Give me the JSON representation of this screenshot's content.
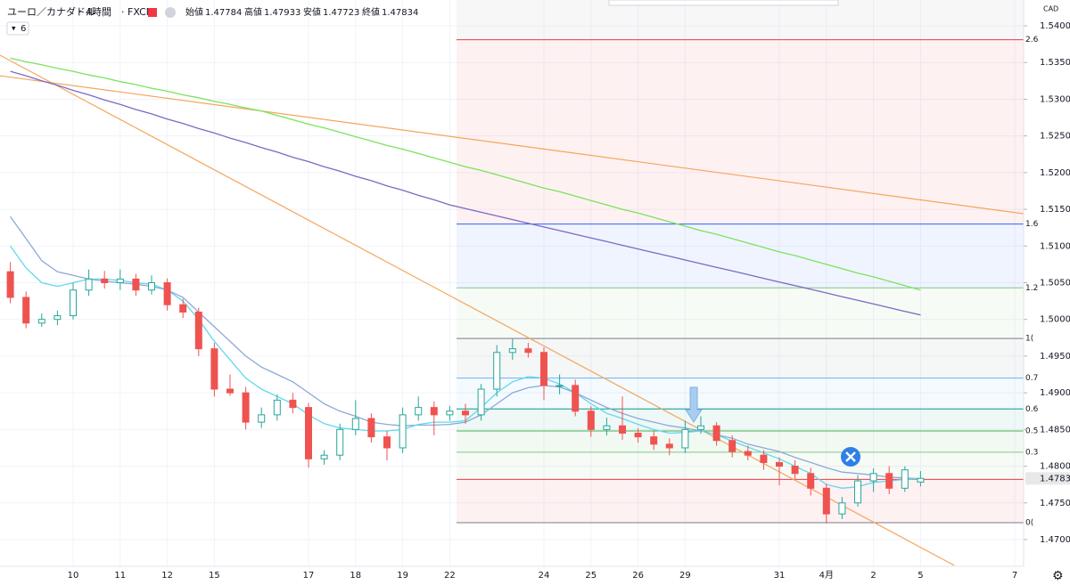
{
  "chart_data": {
    "type": "candlestick",
    "symbol": "ユーロ／カナダドル",
    "interval": "4時間",
    "exchange": "FXCM",
    "separator": "·",
    "indicator_count": "6",
    "currency": "CAD",
    "ohlc_labels": [
      "始値",
      "高値",
      "安値",
      "終値"
    ],
    "categories": [
      null,
      null,
      null,
      null,
      "10",
      null,
      null,
      "11",
      null,
      null,
      "12",
      null,
      null,
      "15",
      null,
      null,
      null,
      null,
      null,
      "17",
      null,
      null,
      "18",
      null,
      null,
      "19",
      null,
      null,
      "22",
      null,
      null,
      null,
      null,
      null,
      "24",
      null,
      null,
      "25",
      null,
      null,
      "26",
      null,
      null,
      "29",
      null,
      null,
      null,
      null,
      null,
      "31",
      null,
      null,
      "4月",
      null,
      null,
      "2",
      null,
      null,
      "5",
      null,
      null,
      null,
      null,
      null,
      "7"
    ],
    "open": [
      1.5065,
      1.503,
      1.4995,
      1.5,
      1.5005,
      1.504,
      1.5055,
      1.505,
      1.5055,
      1.504,
      1.505,
      1.502,
      1.501,
      1.496,
      1.4905,
      1.49,
      1.486,
      1.487,
      1.489,
      1.488,
      1.481,
      1.4815,
      1.485,
      1.4865,
      1.484,
      1.4825,
      1.487,
      1.488,
      1.487,
      1.4875,
      1.487,
      1.4905,
      1.4955,
      1.496,
      1.4955,
      1.491,
      1.491,
      1.4875,
      1.485,
      1.4855,
      1.4845,
      1.484,
      1.483,
      1.4825,
      1.485,
      1.4855,
      1.4835,
      1.482,
      1.4815,
      1.4805,
      1.48,
      1.479,
      1.477,
      1.4735,
      1.475,
      1.478,
      1.479,
      1.477,
      1.47784,
      null,
      null,
      null,
      null,
      null,
      null
    ],
    "high": [
      1.5078,
      1.5038,
      1.5008,
      1.5012,
      1.505,
      1.5068,
      1.5066,
      1.5068,
      1.5062,
      1.506,
      1.5056,
      1.5028,
      1.5016,
      1.4968,
      1.4925,
      1.4908,
      1.488,
      1.4898,
      1.49,
      1.4886,
      1.4822,
      1.4858,
      1.489,
      1.4872,
      1.4848,
      1.488,
      1.4895,
      1.4888,
      1.4882,
      1.4885,
      1.4912,
      1.4965,
      1.4974,
      1.4968,
      1.4962,
      1.4925,
      1.4918,
      1.4882,
      1.4866,
      1.4895,
      1.4852,
      1.4848,
      1.4838,
      1.4862,
      1.4868,
      1.486,
      1.4842,
      1.4828,
      1.4822,
      1.4812,
      1.4808,
      1.4798,
      1.4776,
      1.4758,
      1.4788,
      1.4797,
      1.48,
      1.48,
      1.47933,
      null,
      null,
      null,
      null,
      null,
      null
    ],
    "low": [
      1.5022,
      1.4988,
      1.499,
      1.4992,
      1.5,
      1.5032,
      1.5042,
      1.504,
      1.5032,
      1.5034,
      1.5012,
      1.5002,
      1.495,
      1.4895,
      1.4896,
      1.485,
      1.4852,
      1.4862,
      1.4872,
      1.4798,
      1.4802,
      1.4808,
      1.4842,
      1.4832,
      1.4808,
      1.4818,
      1.4862,
      1.4842,
      1.4862,
      1.4858,
      1.4862,
      1.4895,
      1.4945,
      1.4948,
      1.489,
      1.4898,
      1.4868,
      1.484,
      1.4842,
      1.4836,
      1.4832,
      1.4822,
      1.4815,
      1.4818,
      1.4844,
      1.4828,
      1.4812,
      1.4808,
      1.4795,
      1.4774,
      1.4782,
      1.476,
      1.4722,
      1.4728,
      1.4745,
      1.4765,
      1.4762,
      1.4765,
      1.47723,
      null,
      null,
      null,
      null,
      null,
      null
    ],
    "close": [
      1.503,
      1.4995,
      1.5,
      1.5005,
      1.504,
      1.5055,
      1.505,
      1.5055,
      1.504,
      1.505,
      1.502,
      1.501,
      1.496,
      1.4905,
      1.49,
      1.486,
      1.487,
      1.489,
      1.488,
      1.481,
      1.4815,
      1.485,
      1.4865,
      1.484,
      1.4825,
      1.487,
      1.488,
      1.487,
      1.4875,
      1.487,
      1.4905,
      1.4955,
      1.496,
      1.4955,
      1.491,
      1.491,
      1.4875,
      1.485,
      1.4855,
      1.4845,
      1.484,
      1.483,
      1.4825,
      1.485,
      1.4855,
      1.4835,
      1.482,
      1.4815,
      1.4805,
      1.48,
      1.479,
      1.477,
      1.4735,
      1.475,
      1.478,
      1.479,
      1.477,
      1.4795,
      1.47834,
      null,
      null,
      null,
      null,
      null,
      null
    ],
    "up_color": "#26a69a",
    "down_color": "#ef5350",
    "series": [
      {
        "color": "#8fa8d8",
        "values": [
          1.514,
          1.511,
          1.508,
          1.5065,
          1.506,
          1.5055,
          1.5052,
          1.505,
          1.5048,
          1.5045,
          1.504,
          1.503,
          1.501,
          1.499,
          1.497,
          1.495,
          1.4935,
          1.4925,
          1.4915,
          1.49,
          1.4885,
          1.4875,
          1.4868,
          1.486,
          1.4857,
          1.4855,
          1.4856,
          1.4856,
          1.4857,
          1.486,
          1.487,
          1.4885,
          1.49,
          1.4907,
          1.491,
          1.4908,
          1.49,
          1.489,
          1.488,
          1.4872,
          1.4865,
          1.486,
          1.4855,
          1.4852,
          1.4848,
          1.4843,
          1.4838,
          1.483,
          1.4825,
          1.482,
          1.4812,
          1.4805,
          1.4798,
          1.4792,
          1.479,
          1.4788,
          1.4785,
          1.4784,
          1.4783,
          null,
          null,
          null,
          null,
          null,
          null
        ]
      },
      {
        "color": "#5fd8ee",
        "values": [
          1.51,
          1.507,
          1.505,
          1.5045,
          1.505,
          1.5055,
          1.5055,
          1.5053,
          1.505,
          1.5048,
          1.504,
          1.5025,
          1.5,
          1.497,
          1.4945,
          1.492,
          1.4905,
          1.4895,
          1.4885,
          1.487,
          1.4858,
          1.4852,
          1.485,
          1.4848,
          1.4848,
          1.485,
          1.4857,
          1.486,
          1.486,
          1.4862,
          1.488,
          1.49,
          1.4915,
          1.4922,
          1.492,
          1.4912,
          1.49,
          1.4885,
          1.4872,
          1.4865,
          1.4857,
          1.485,
          1.4845,
          1.4846,
          1.4848,
          1.4843,
          1.4834,
          1.4826,
          1.4818,
          1.481,
          1.48,
          1.479,
          1.4775,
          1.477,
          1.4772,
          1.4778,
          1.478,
          1.4782,
          1.4783,
          null,
          null,
          null,
          null,
          null,
          null
        ]
      },
      {
        "color": "#7be35b",
        "values": [
          1.5356,
          1.5351,
          1.5347,
          1.5342,
          1.5338,
          1.5333,
          1.5329,
          1.5324,
          1.532,
          1.5315,
          1.5311,
          1.5306,
          1.5302,
          1.5297,
          1.5293,
          1.5288,
          1.5284,
          1.5278,
          1.5272,
          1.5266,
          1.5261,
          1.5255,
          1.5249,
          1.5243,
          1.5237,
          1.5232,
          1.5226,
          1.522,
          1.5214,
          1.5208,
          1.5203,
          1.5197,
          1.5191,
          1.5185,
          1.5179,
          1.5174,
          1.5168,
          1.5162,
          1.5156,
          1.515,
          1.5145,
          1.5139,
          1.5133,
          1.5127,
          1.5121,
          1.5116,
          1.511,
          1.5104,
          1.5098,
          1.5092,
          1.5087,
          1.5081,
          1.5075,
          1.5069,
          1.5063,
          1.5058,
          1.5052,
          1.5046,
          1.504,
          null,
          null,
          null,
          null,
          null,
          null
        ]
      },
      {
        "color": "#7a6ac4",
        "values": [
          1.5338,
          1.5332,
          1.5325,
          1.5319,
          1.5312,
          1.5306,
          1.5299,
          1.5293,
          1.5286,
          1.528,
          1.5273,
          1.5267,
          1.526,
          1.5254,
          1.5247,
          1.5241,
          1.5234,
          1.5228,
          1.5221,
          1.5215,
          1.5208,
          1.5202,
          1.5195,
          1.5189,
          1.5182,
          1.5176,
          1.5169,
          1.5163,
          1.5156,
          1.5151,
          1.5146,
          1.5141,
          1.5136,
          1.5131,
          1.5126,
          1.5121,
          1.5116,
          1.5111,
          1.5106,
          1.5101,
          1.5096,
          1.5091,
          1.5086,
          1.5081,
          1.5076,
          1.5071,
          1.5066,
          1.5061,
          1.5056,
          1.5051,
          1.5046,
          1.5041,
          1.5036,
          1.5031,
          1.5026,
          1.5021,
          1.5016,
          1.5011,
          1.5006,
          null,
          null,
          null,
          null,
          null,
          null
        ]
      }
    ],
    "trendlines": [
      {
        "color": "#f5a55a",
        "values": [
          1.536,
          1.4665
        ]
      },
      {
        "color": "#f5a55a",
        "values": [
          1.5332,
          1.5144
        ]
      }
    ],
    "fib_levels": [
      {
        "value": 1.4723,
        "label": "0(",
        "color": "#787b86"
      },
      {
        "value": 1.4782,
        "label": "0.2",
        "color": "#f23645"
      },
      {
        "value": 1.4819,
        "label": "0.3",
        "color": "#81c784"
      },
      {
        "value": 1.4848,
        "label": "0.5",
        "color": "#4caf50"
      },
      {
        "value": 1.4878,
        "label": "0.6",
        "color": "#089981"
      },
      {
        "value": 1.492,
        "label": "0.7",
        "color": "#64b5f6"
      },
      {
        "value": 1.4974,
        "label": "1(",
        "color": "#787b86"
      },
      {
        "value": 1.5043,
        "label": "1.2",
        "color": "#81c784"
      },
      {
        "value": 1.513,
        "label": "1.6",
        "color": "#2962ff"
      },
      {
        "value": 1.5381,
        "label": "2.6",
        "color": "#f23645"
      }
    ],
    "ylim": [
      1.46636,
      1.54352
    ],
    "yticks": [
      {
        "value": 1.54,
        "label": "1.54000"
      },
      {
        "value": 1.535,
        "label": "1.53500"
      },
      {
        "value": 1.53,
        "label": "1.53000"
      },
      {
        "value": 1.525,
        "label": "1.52500"
      },
      {
        "value": 1.52,
        "label": "1.52000"
      },
      {
        "value": 1.515,
        "label": "1.51500"
      },
      {
        "value": 1.51,
        "label": "1.51000"
      },
      {
        "value": 1.505,
        "label": "1.50500"
      },
      {
        "value": 1.5,
        "label": "1.50000"
      },
      {
        "value": 1.495,
        "label": "1.49500"
      },
      {
        "value": 1.49,
        "label": "1.49000"
      },
      {
        "value": 1.485,
        "label": "1.48500"
      },
      {
        "value": 1.48,
        "label": "1.48000"
      },
      {
        "value": 1.475,
        "label": "1.47500"
      },
      {
        "value": 1.47,
        "label": "1.47000"
      }
    ],
    "grid": true
  }
}
